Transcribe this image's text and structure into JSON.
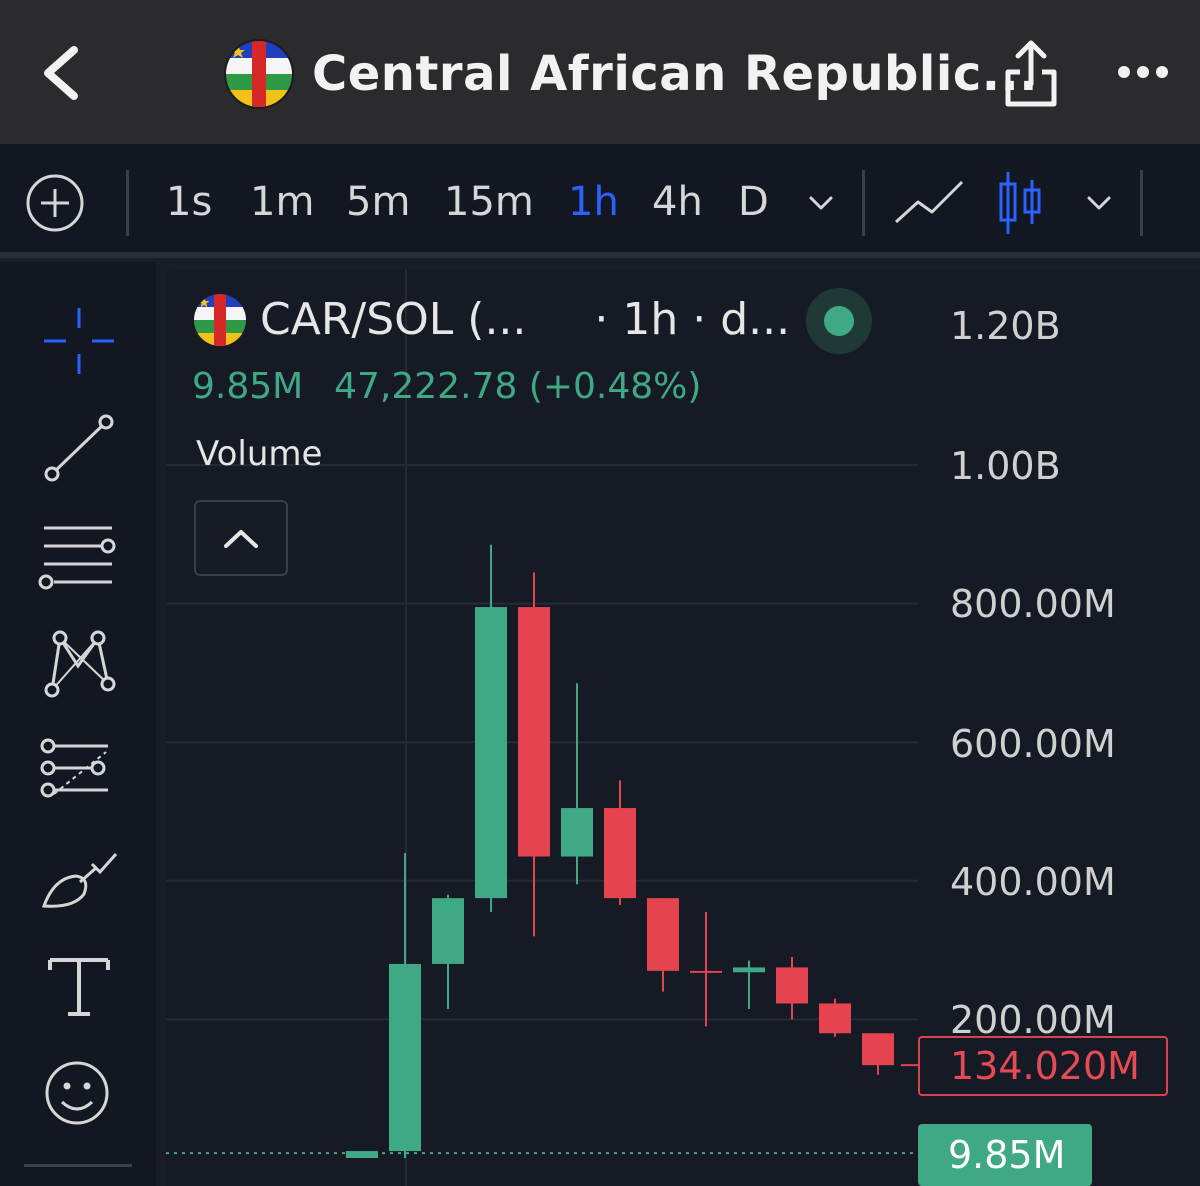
{
  "header": {
    "title": "Central African Republic...",
    "back_icon": "chevron-left-icon",
    "share_icon": "share-icon",
    "more_icon": "more-horizontal-icon",
    "flag_icon": "central-african-republic-flag-icon"
  },
  "toolbar": {
    "add_icon": "plus-circle-icon",
    "timeframes": [
      "1s",
      "1m",
      "5m",
      "15m",
      "1h",
      "4h",
      "D"
    ],
    "active_timeframe": "1h",
    "dropdown_icon": "chevron-down-icon",
    "line_chart_icon": "line-chart-icon",
    "candle_chart_icon": "candlestick-icon",
    "colors": {
      "active": "#2962ff"
    }
  },
  "left_tools": [
    "crosshair-icon",
    "trend-line-icon",
    "horizontal-lines-icon",
    "pattern-icon",
    "fib-retracement-icon",
    "brush-icon",
    "text-icon",
    "emoji-icon"
  ],
  "legend": {
    "symbol": "CAR/SOL (...",
    "interval": "· 1h · d...",
    "volume_value": "9.85M",
    "price_change": "47,222.78 (+0.48%)",
    "volume_label": "Volume",
    "collapse_icon": "chevron-up-icon",
    "status": "live",
    "colors": {
      "up": "#3fa884",
      "down": "#e5434f"
    }
  },
  "price_axis": {
    "labels": [
      "1.20B",
      "1.00B",
      "800.00M",
      "600.00M",
      "400.00M",
      "200.00M"
    ],
    "current_price": "134.020M",
    "volume_tag": "9.85M"
  },
  "chart_data": {
    "type": "candlestick",
    "interval": "1h",
    "unit": "market cap (SOL)",
    "ylim": [
      0,
      1250000000
    ],
    "candles": [
      {
        "open": 0,
        "high": 10000000,
        "low": 0,
        "close": 10000000
      },
      {
        "open": 10000000,
        "high": 440000000,
        "low": 0,
        "close": 280000000
      },
      {
        "open": 280000000,
        "high": 380000000,
        "low": 215000000,
        "close": 375000000
      },
      {
        "open": 375000000,
        "high": 885000000,
        "low": 355000000,
        "close": 795000000
      },
      {
        "open": 795000000,
        "high": 845000000,
        "low": 320000000,
        "close": 435000000
      },
      {
        "open": 435000000,
        "high": 685000000,
        "low": 395000000,
        "close": 505000000
      },
      {
        "open": 505000000,
        "high": 545000000,
        "low": 365000000,
        "close": 375000000
      },
      {
        "open": 375000000,
        "high": 375000000,
        "low": 240000000,
        "close": 270000000
      },
      {
        "open": 270000000,
        "high": 355000000,
        "low": 190000000,
        "close": 268000000
      },
      {
        "open": 268000000,
        "high": 285000000,
        "low": 215000000,
        "close": 275000000
      },
      {
        "open": 275000000,
        "high": 290000000,
        "low": 200000000,
        "close": 223000000
      },
      {
        "open": 223000000,
        "high": 230000000,
        "low": 175000000,
        "close": 180000000
      },
      {
        "open": 180000000,
        "high": 180000000,
        "low": 120000000,
        "close": 134000000
      }
    ],
    "current_price": 134020000,
    "volume": 9850000
  }
}
